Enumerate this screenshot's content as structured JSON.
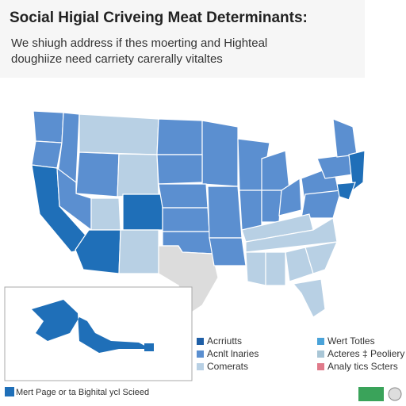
{
  "header": {
    "title": "Social Higial Criveing Meat Determinants:",
    "subtitle": [
      "We shiugh address if thes moerting and Highteal",
      "doughiize need carriety carerally vitaltes"
    ]
  },
  "legend": [
    {
      "label": "Acrriutts",
      "color": "#1f5fa6"
    },
    {
      "label": "Acnlt lnaries",
      "color": "#5b8fd0"
    },
    {
      "label": "Comerats",
      "color": "#b8d0e4"
    },
    {
      "label": "Wert Totles",
      "color": "#4aa3d9"
    },
    {
      "label": "Acteres ‡ Peoliery",
      "color": "#a9c6d6"
    },
    {
      "label": "Analy tics Scters",
      "color": "#e07a8a"
    }
  ],
  "footer": "Mert Page or ta Bighital ycl Scieed"
}
